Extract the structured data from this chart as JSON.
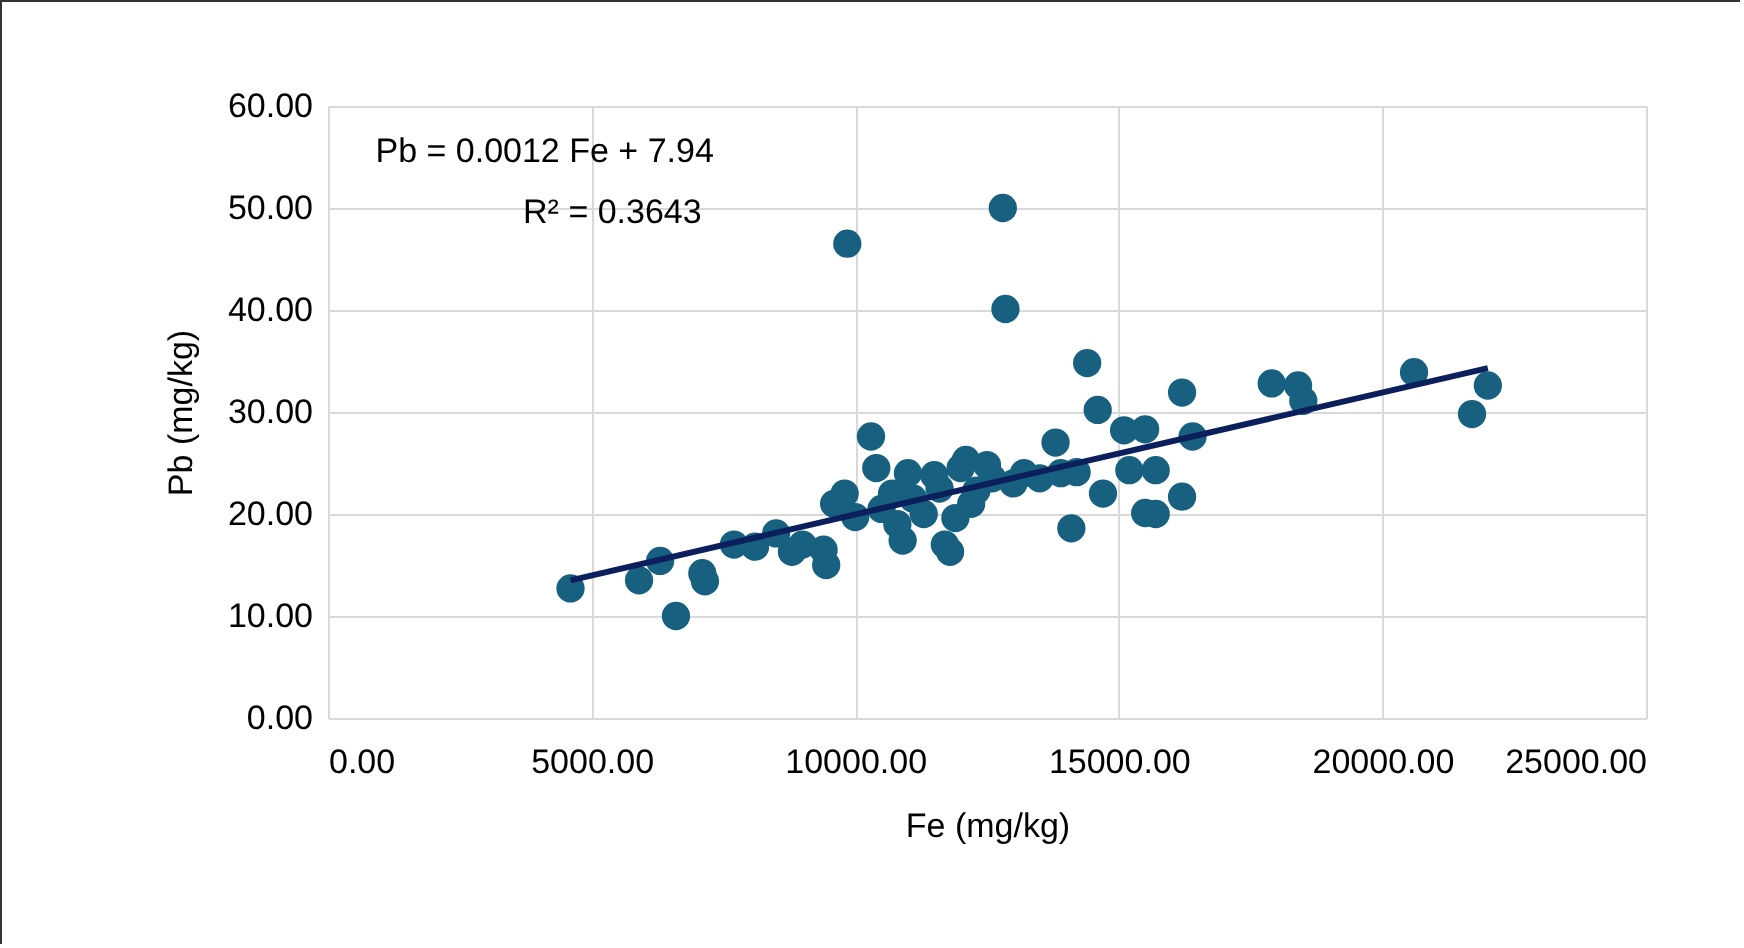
{
  "chart_data": {
    "type": "scatter",
    "xlabel": "Fe (mg/kg)",
    "ylabel": "Pb (mg/kg)",
    "xlim": [
      0,
      25000
    ],
    "xticks": [
      {
        "value": 0,
        "label": "0.00"
      },
      {
        "value": 5000,
        "label": "5000.00"
      },
      {
        "value": 10000,
        "label": "10000.00"
      },
      {
        "value": 15000,
        "label": "15000.00"
      },
      {
        "value": 20000,
        "label": "20000.00"
      },
      {
        "value": 25000,
        "label": "25000.00"
      }
    ],
    "ylim": [
      0,
      60
    ],
    "yticks": [
      {
        "value": 0,
        "label": "0.00"
      },
      {
        "value": 10,
        "label": "10.00"
      },
      {
        "value": 20,
        "label": "20.00"
      },
      {
        "value": 30,
        "label": "30.00"
      },
      {
        "value": 40,
        "label": "40.00"
      },
      {
        "value": 50,
        "label": "50.00"
      },
      {
        "value": 60,
        "label": "60.00"
      }
    ],
    "grid": true,
    "marker": "circle",
    "annotations": [
      "Pb = 0.0012 Fe + 7.94",
      "R² = 0.3643"
    ],
    "series": [
      {
        "color": "#17607f",
        "x": [
          4600,
          5900,
          6300,
          6600,
          7100,
          7150,
          7700,
          8100,
          8500,
          8800,
          9000,
          9400,
          9450,
          9600,
          9800,
          9850,
          10000,
          10300,
          10400,
          10500,
          10700,
          10800,
          10900,
          11000,
          11100,
          11300,
          11500,
          11600,
          11700,
          11800,
          11900,
          12000,
          12100,
          12200,
          12300,
          12500,
          12600,
          12800,
          12850,
          13000,
          13200,
          13500,
          13800,
          13900,
          14100,
          14200,
          14400,
          14600,
          14700,
          15100,
          15200,
          15500,
          15500,
          15700,
          15700,
          16200,
          16200,
          16400,
          17900,
          18400,
          18500,
          20600,
          21700,
          22000
        ],
        "values": [
          12.7,
          13.5,
          15.4,
          10.0,
          14.2,
          13.4,
          17.0,
          16.8,
          18.1,
          16.3,
          17.0,
          16.5,
          15.0,
          21.0,
          22.0,
          46.5,
          19.7,
          27.6,
          24.5,
          20.5,
          22.0,
          19.0,
          17.4,
          24.0,
          21.5,
          20.0,
          23.8,
          22.5,
          17.0,
          16.3,
          19.6,
          24.5,
          25.3,
          21.0,
          22.3,
          24.8,
          23.5,
          50.0,
          40.1,
          23.0,
          24.0,
          23.5,
          27.0,
          24.0,
          18.6,
          24.1,
          34.8,
          30.2,
          22.0,
          28.2,
          24.3,
          28.3,
          20.1,
          20.0,
          24.3,
          21.7,
          31.9,
          27.6,
          32.8,
          32.6,
          31.1,
          33.9,
          29.8,
          32.6
        ]
      },
      {
        "type": "line",
        "marker": "none",
        "color": "#0b1f5c",
        "x": [
          4600,
          22000
        ],
        "values": [
          13.5,
          34.3
        ]
      }
    ]
  }
}
